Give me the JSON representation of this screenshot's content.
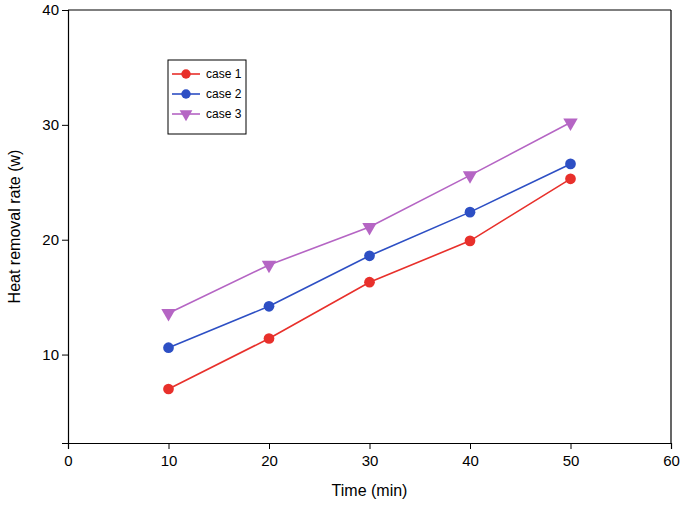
{
  "chart_data": {
    "type": "line",
    "x_label": "Time (min)",
    "y_label": "Heat removal rate (w)",
    "x": [
      10,
      20,
      30,
      40,
      50
    ],
    "series": [
      {
        "name": "case 1",
        "color": "#e8302b",
        "marker": "circle",
        "values": [
          7.0,
          11.4,
          16.3,
          19.9,
          25.3
        ]
      },
      {
        "name": "case 2",
        "color": "#2d4fc4",
        "marker": "circle",
        "values": [
          10.6,
          14.2,
          18.6,
          22.4,
          26.6
        ]
      },
      {
        "name": "case 3",
        "color": "#b565c4",
        "marker": "triangle-down",
        "values": [
          13.6,
          17.8,
          21.1,
          25.6,
          30.2
        ]
      }
    ],
    "xlim": [
      0,
      60
    ],
    "xticks": [
      0,
      10,
      20,
      30,
      40,
      50,
      60
    ],
    "ylim": [
      2.3,
      40
    ],
    "yticks": [
      10,
      20,
      30,
      40
    ],
    "legend": "upper left",
    "grid": false
  }
}
